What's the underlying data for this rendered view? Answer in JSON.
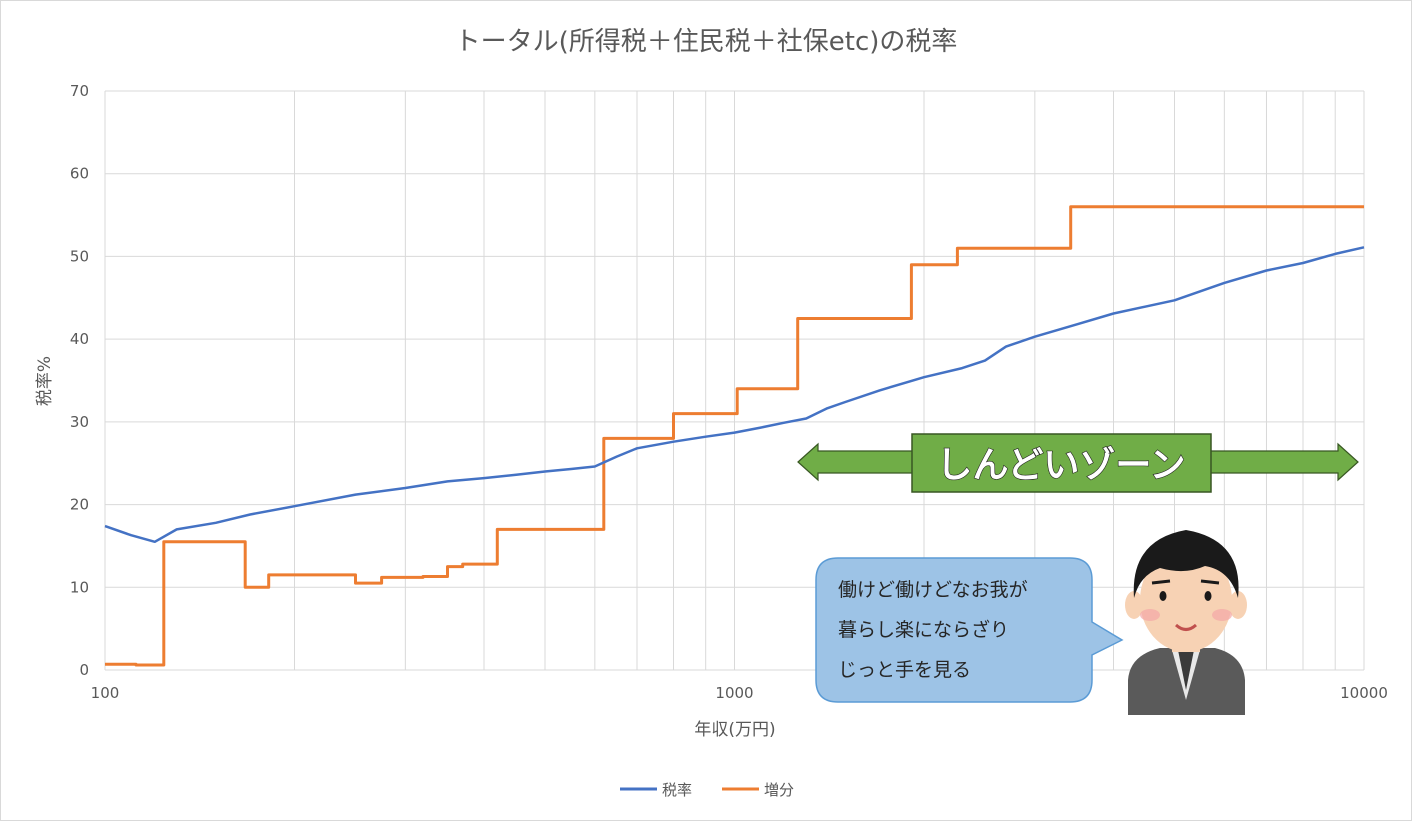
{
  "chart_data": {
    "type": "line",
    "title": "トータル(所得税＋住民税＋社保etc)の税率",
    "xlabel": "年収(万円)",
    "ylabel": "税率%",
    "xscale": "log",
    "xlim": [
      100,
      10000
    ],
    "ylim": [
      0,
      70
    ],
    "x_ticks": [
      "100",
      "1000",
      "10000"
    ],
    "y_ticks": [
      "0",
      "10",
      "20",
      "30",
      "40",
      "50",
      "60",
      "70"
    ],
    "grid": true,
    "legend_position": "bottom",
    "series": [
      {
        "name": "税率",
        "color": "#4472c4",
        "x": [
          100,
          110,
          120,
          130,
          150,
          170,
          200,
          250,
          300,
          350,
          400,
          450,
          500,
          550,
          600,
          650,
          700,
          800,
          900,
          1000,
          1100,
          1200,
          1300,
          1400,
          1500,
          1700,
          2000,
          2300,
          2500,
          2700,
          3000,
          3500,
          4000,
          5000,
          6000,
          7000,
          8000,
          9000,
          10000
        ],
        "y": [
          17.4,
          16.3,
          15.5,
          17.0,
          17.8,
          18.8,
          19.8,
          21.2,
          22.0,
          22.8,
          23.2,
          23.6,
          24.0,
          24.3,
          24.6,
          25.8,
          26.8,
          27.6,
          28.2,
          28.7,
          29.3,
          29.9,
          30.4,
          31.6,
          32.4,
          33.8,
          35.4,
          36.5,
          37.4,
          39.1,
          40.3,
          41.8,
          43.1,
          44.7,
          46.8,
          48.3,
          49.2,
          50.3,
          51.1
        ]
      },
      {
        "name": "増分",
        "color": "#ed7d31",
        "x": [
          100,
          110,
          112,
          122,
          124,
          165,
          167,
          178,
          182,
          248,
          250,
          270,
          275,
          310,
          320,
          350,
          370,
          400,
          420,
          600,
          620,
          790,
          800,
          1000,
          1010,
          1250,
          1260,
          1900,
          1910,
          2250,
          2260,
          3400,
          3420,
          10000
        ],
        "y": [
          0.7,
          0.7,
          0.6,
          0.6,
          15.5,
          15.5,
          10.0,
          10.0,
          11.5,
          11.5,
          10.5,
          10.5,
          11.2,
          11.2,
          11.3,
          12.5,
          12.8,
          12.8,
          17.0,
          17.0,
          28.0,
          28.0,
          31.0,
          31.0,
          34.0,
          34.0,
          42.5,
          42.5,
          49.0,
          49.0,
          51.0,
          51.0,
          56.0,
          56.0
        ]
      }
    ]
  },
  "annotations": {
    "zone_label": "しんどいゾーン",
    "zone_color": "#70ad47",
    "bubble_lines": [
      "働けど働けどなお我が",
      "暮らし楽にならざり",
      "じっと手を見る"
    ],
    "bubble_color": "#9dc3e6"
  }
}
